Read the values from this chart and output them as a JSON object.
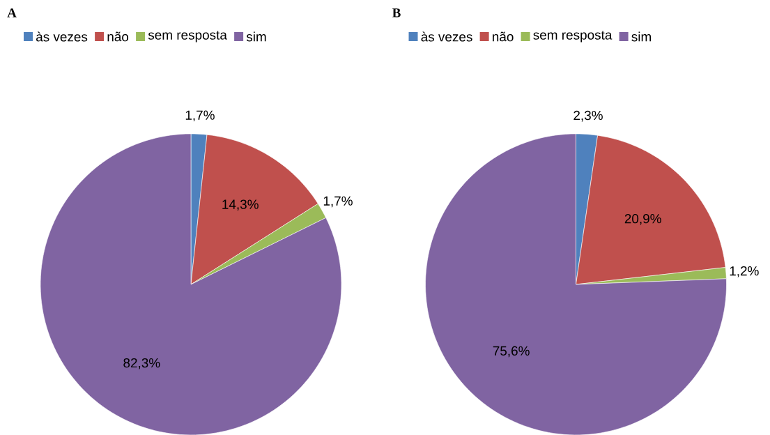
{
  "chart_data": [
    {
      "type": "pie",
      "title": "A",
      "categories": [
        "às vezes",
        "não",
        "sem resposta",
        "sim"
      ],
      "values": [
        1.7,
        14.3,
        1.7,
        82.3
      ],
      "colors": [
        "#4f81bd",
        "#c0504d",
        "#9bbb59",
        "#8064a2"
      ],
      "value_labels": [
        "1,7%",
        "14,3%",
        "1,7%",
        "82,3%"
      ],
      "legend": "top left"
    },
    {
      "type": "pie",
      "title": "B",
      "categories": [
        "às vezes",
        "não",
        "sem resposta",
        "sim"
      ],
      "values": [
        2.3,
        20.9,
        1.2,
        75.6
      ],
      "colors": [
        "#4f81bd",
        "#c0504d",
        "#9bbb59",
        "#8064a2"
      ],
      "value_labels": [
        "2,3%",
        "20,9%",
        "1,2%",
        "75,6%"
      ],
      "legend": "top left"
    }
  ]
}
